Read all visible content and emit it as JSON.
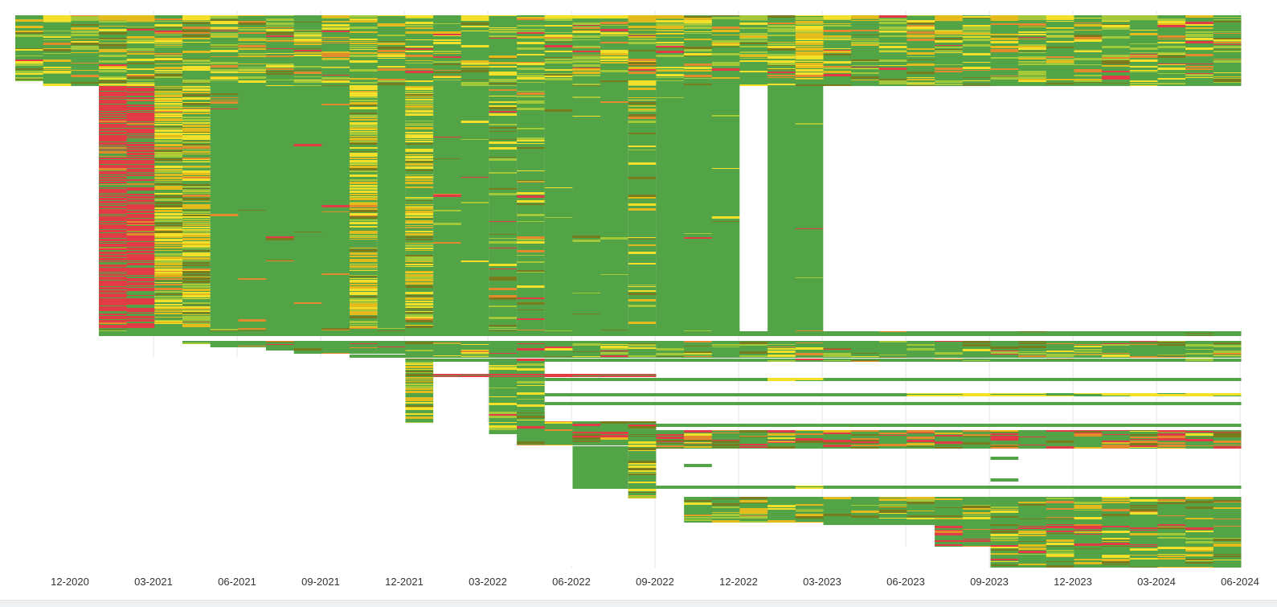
{
  "chart_data": {
    "type": "heatmap",
    "title": "",
    "xlabel": "",
    "ylabel": "",
    "x_axis": {
      "type": "date",
      "range": [
        "2020-10-01",
        "2024-06-30"
      ],
      "ticks": [
        {
          "date": "2020-12-01",
          "label": "12-2020"
        },
        {
          "date": "2021-03-01",
          "label": "03-2021"
        },
        {
          "date": "2021-06-01",
          "label": "06-2021"
        },
        {
          "date": "2021-09-01",
          "label": "09-2021"
        },
        {
          "date": "2021-12-01",
          "label": "12-2021"
        },
        {
          "date": "2022-03-01",
          "label": "03-2022"
        },
        {
          "date": "2022-06-01",
          "label": "06-2022"
        },
        {
          "date": "2022-09-01",
          "label": "09-2022"
        },
        {
          "date": "2022-12-01",
          "label": "12-2022"
        },
        {
          "date": "2023-03-01",
          "label": "03-2023"
        },
        {
          "date": "2023-06-01",
          "label": "06-2023"
        },
        {
          "date": "2023-09-01",
          "label": "09-2023"
        },
        {
          "date": "2023-12-01",
          "label": "12-2023"
        },
        {
          "date": "2024-03-01",
          "label": "03-2024"
        },
        {
          "date": "2024-06-01",
          "label": "06-2024"
        }
      ]
    },
    "grid": {
      "vertical": true,
      "horizontal": false
    },
    "legend": "none",
    "colors": {
      "green": "#52a447",
      "light_green": "#a3c93a",
      "yellow": "#f2e02b",
      "gold": "#e4bb1c",
      "olive": "#7a7a1e",
      "orange": "#e38a2c",
      "red": "#e33b46",
      "gridline": "#e6e6e6",
      "tick_text": "#333333"
    }
  }
}
